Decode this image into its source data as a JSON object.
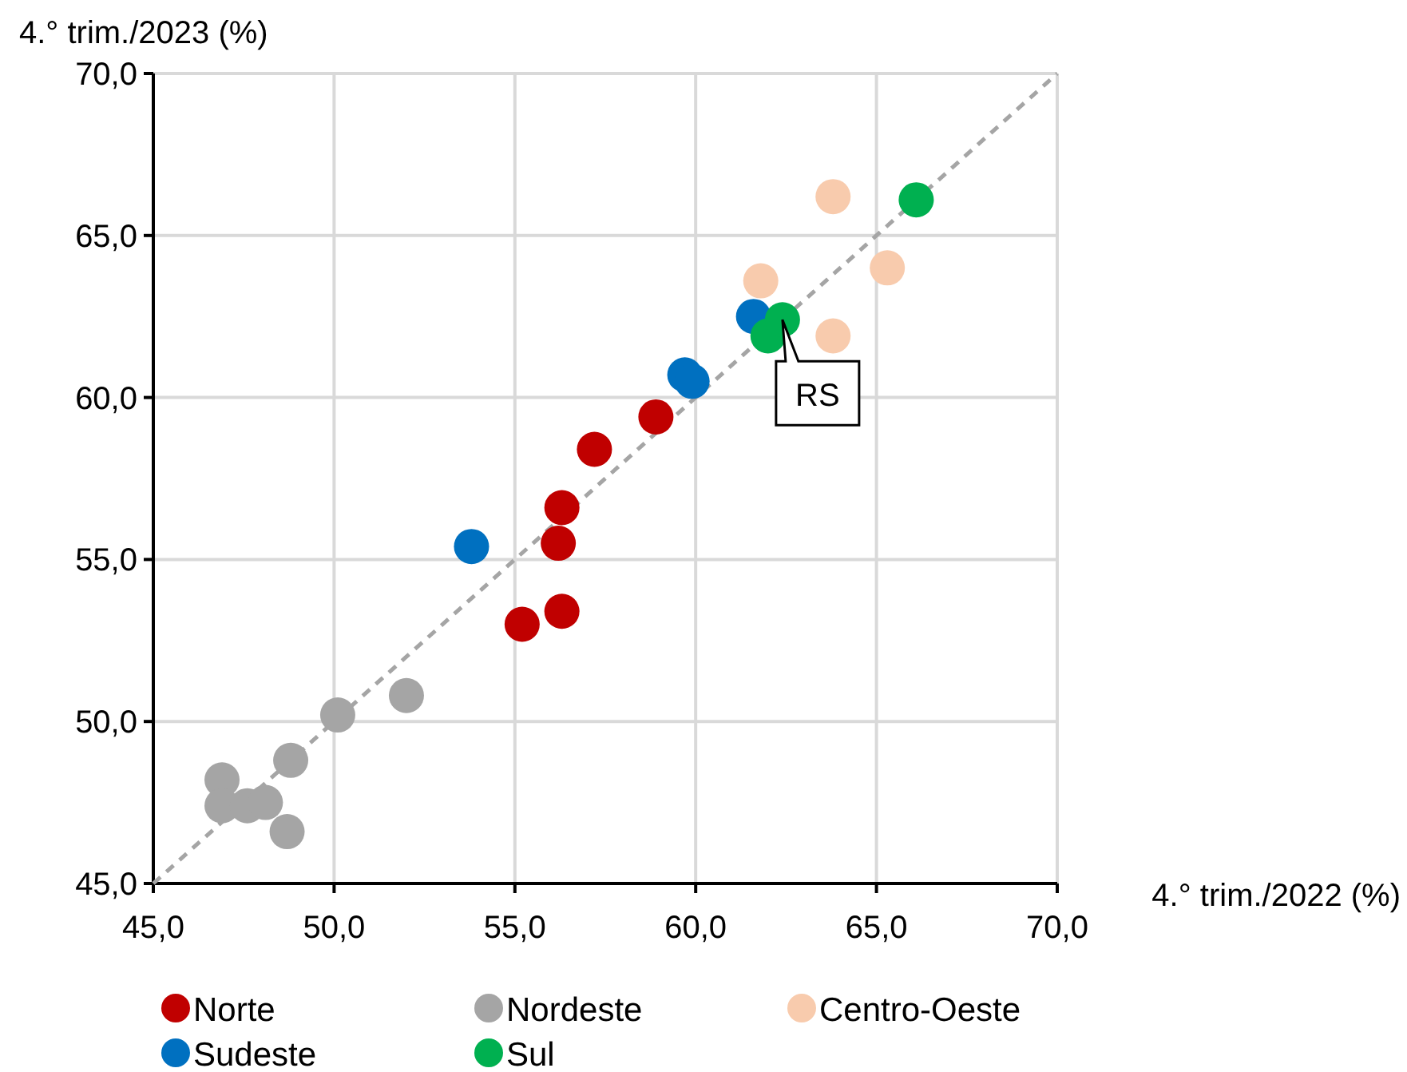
{
  "chart_data": {
    "type": "scatter",
    "xlabel": "4.° trim./2022 (%)",
    "ylabel": "4.° trim./2023 (%)",
    "xlim": [
      45,
      70
    ],
    "ylim": [
      45,
      70
    ],
    "xticks": [
      {
        "value": 45,
        "label": "45,0"
      },
      {
        "value": 50,
        "label": "50,0"
      },
      {
        "value": 55,
        "label": "55,0"
      },
      {
        "value": 60,
        "label": "60,0"
      },
      {
        "value": 65,
        "label": "65,0"
      },
      {
        "value": 70,
        "label": "70,0"
      }
    ],
    "yticks": [
      {
        "value": 45,
        "label": "45,0"
      },
      {
        "value": 50,
        "label": "50,0"
      },
      {
        "value": 55,
        "label": "55,0"
      },
      {
        "value": 60,
        "label": "60,0"
      },
      {
        "value": 65,
        "label": "65,0"
      },
      {
        "value": 70,
        "label": "70,0"
      }
    ],
    "grid": true,
    "legend": "bottom",
    "series": [
      {
        "name": "Norte",
        "color": "#c00000",
        "marker": "circle",
        "x": [
          55.2,
          56.3,
          56.2,
          56.3,
          57.2,
          58.9
        ],
        "values": [
          53.0,
          53.4,
          55.5,
          56.6,
          58.4,
          59.4
        ]
      },
      {
        "name": "Nordeste",
        "color": "#a5a5a5",
        "marker": "circle",
        "x": [
          50.1,
          52.0,
          48.8,
          46.9,
          46.9,
          47.6,
          48.1,
          48.7
        ],
        "values": [
          50.2,
          50.8,
          48.8,
          48.2,
          47.4,
          47.4,
          47.5,
          46.6
        ]
      },
      {
        "name": "Centro-Oeste",
        "color": "#f8cbad",
        "marker": "circle",
        "x": [
          61.8,
          63.8,
          63.8,
          65.3
        ],
        "values": [
          63.6,
          66.2,
          61.9,
          64.0
        ]
      },
      {
        "name": "Sudeste",
        "color": "#0070c0",
        "marker": "circle",
        "x": [
          53.8,
          59.7,
          59.9,
          61.6
        ],
        "values": [
          55.4,
          60.7,
          60.5,
          62.5
        ]
      },
      {
        "name": "Sul",
        "color": "#00b050",
        "marker": "circle",
        "x": [
          62.0,
          62.4,
          66.1
        ],
        "values": [
          61.9,
          62.4,
          66.1
        ]
      },
      {
        "type": "line",
        "color": "#a5a5a5",
        "line_style": "dashed",
        "x": [
          45,
          70
        ],
        "values": [
          45,
          70
        ]
      }
    ],
    "annotations": [
      {
        "text": "RS",
        "x": 62.4,
        "y": 62.4
      }
    ]
  }
}
